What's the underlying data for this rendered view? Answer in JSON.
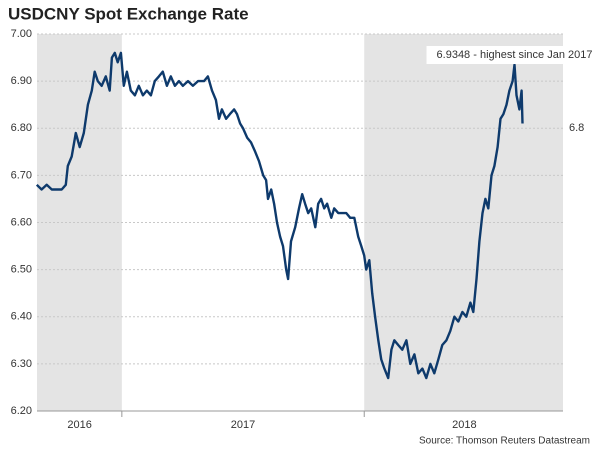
{
  "chart_data": {
    "type": "line",
    "title": "USDCNY Spot Exchange Rate",
    "source": "Source: Thomson Reuters Datastream",
    "xlim": [
      2016.65,
      2018.82
    ],
    "ylim": [
      6.2,
      7.0
    ],
    "yticks": [
      {
        "value": 6.2,
        "label": "6.20"
      },
      {
        "value": 6.3,
        "label": "6.30"
      },
      {
        "value": 6.4,
        "label": "6.40"
      },
      {
        "value": 6.5,
        "label": "6.50"
      },
      {
        "value": 6.6,
        "label": "6.60"
      },
      {
        "value": 6.7,
        "label": "6.70"
      },
      {
        "value": 6.8,
        "label": "6.80"
      },
      {
        "value": 6.9,
        "label": "6.90"
      },
      {
        "value": 7.0,
        "label": "7.00"
      }
    ],
    "xticks": [
      {
        "value": 2016.826,
        "label": "2016"
      },
      {
        "value": 2017.5,
        "label": "2017"
      },
      {
        "value": 2018.413,
        "label": "2018"
      }
    ],
    "shaded": [
      [
        2016.65,
        2017.0
      ],
      [
        2018.0,
        2018.82
      ]
    ],
    "grid": true,
    "annotations": [
      {
        "text": "6.9348 - highest since Jan 2017",
        "x": 2018.62,
        "y": 6.9348
      },
      {
        "text": "6.8",
        "y": 6.8
      }
    ],
    "series": [
      {
        "name": "USDCNY",
        "color": "#0e3a6c",
        "x": [
          2016.649,
          2016.669,
          2016.69,
          2016.711,
          2016.731,
          2016.752,
          2016.769,
          2016.777,
          2016.793,
          2016.81,
          2016.826,
          2016.843,
          2016.86,
          2016.876,
          2016.888,
          2016.901,
          2016.917,
          2016.934,
          2016.95,
          2016.959,
          2016.971,
          2016.983,
          2016.996,
          2017.008,
          2017.021,
          2017.037,
          2017.054,
          2017.07,
          2017.087,
          2017.103,
          2017.12,
          2017.136,
          2017.153,
          2017.169,
          2017.186,
          2017.202,
          2017.219,
          2017.236,
          2017.252,
          2017.273,
          2017.293,
          2017.314,
          2017.339,
          2017.355,
          2017.372,
          2017.388,
          2017.401,
          2017.413,
          2017.43,
          2017.446,
          2017.463,
          2017.475,
          2017.488,
          2017.5,
          2017.517,
          2017.533,
          2017.55,
          2017.566,
          2017.583,
          2017.595,
          2017.603,
          2017.616,
          2017.628,
          2017.64,
          2017.653,
          2017.665,
          2017.678,
          2017.686,
          2017.698,
          2017.715,
          2017.731,
          2017.744,
          2017.756,
          2017.769,
          2017.781,
          2017.798,
          2017.81,
          2017.822,
          2017.835,
          2017.847,
          2017.864,
          2017.876,
          2017.893,
          2017.909,
          2017.926,
          2017.942,
          2017.959,
          2017.975,
          2017.988,
          2018.0,
          2018.008,
          2018.021,
          2018.033,
          2018.045,
          2018.058,
          2018.07,
          2018.083,
          2018.099,
          2018.112,
          2018.124,
          2018.14,
          2018.157,
          2018.174,
          2018.19,
          2018.207,
          2018.223,
          2018.24,
          2018.256,
          2018.273,
          2018.289,
          2018.306,
          2018.322,
          2018.339,
          2018.355,
          2018.372,
          2018.388,
          2018.405,
          2018.421,
          2018.438,
          2018.45,
          2018.463,
          2018.475,
          2018.488,
          2018.5,
          2018.512,
          2018.525,
          2018.537,
          2018.55,
          2018.562,
          2018.574,
          2018.587,
          2018.599,
          2018.612,
          2018.62,
          2018.628,
          2018.64,
          2018.649,
          2018.653
        ],
        "values": [
          6.68,
          6.67,
          6.68,
          6.67,
          6.67,
          6.67,
          6.68,
          6.72,
          6.74,
          6.79,
          6.76,
          6.79,
          6.85,
          6.88,
          6.92,
          6.9,
          6.89,
          6.91,
          6.88,
          6.95,
          6.96,
          6.94,
          6.96,
          6.89,
          6.92,
          6.88,
          6.87,
          6.89,
          6.87,
          6.88,
          6.87,
          6.9,
          6.91,
          6.92,
          6.89,
          6.91,
          6.89,
          6.9,
          6.89,
          6.9,
          6.89,
          6.9,
          6.9,
          6.91,
          6.88,
          6.86,
          6.82,
          6.84,
          6.82,
          6.83,
          6.84,
          6.83,
          6.81,
          6.8,
          6.78,
          6.77,
          6.75,
          6.73,
          6.7,
          6.69,
          6.65,
          6.67,
          6.64,
          6.6,
          6.57,
          6.55,
          6.5,
          6.48,
          6.56,
          6.59,
          6.63,
          6.66,
          6.64,
          6.62,
          6.63,
          6.59,
          6.64,
          6.65,
          6.63,
          6.64,
          6.61,
          6.63,
          6.62,
          6.62,
          6.62,
          6.61,
          6.61,
          6.57,
          6.55,
          6.53,
          6.5,
          6.52,
          6.45,
          6.4,
          6.35,
          6.31,
          6.29,
          6.27,
          6.33,
          6.35,
          6.34,
          6.33,
          6.35,
          6.3,
          6.32,
          6.28,
          6.29,
          6.27,
          6.3,
          6.28,
          6.31,
          6.34,
          6.35,
          6.37,
          6.4,
          6.39,
          6.41,
          6.4,
          6.43,
          6.41,
          6.48,
          6.56,
          6.62,
          6.65,
          6.63,
          6.7,
          6.72,
          6.76,
          6.82,
          6.83,
          6.85,
          6.88,
          6.9,
          6.9348,
          6.87,
          6.84,
          6.88,
          6.81
        ]
      }
    ]
  }
}
